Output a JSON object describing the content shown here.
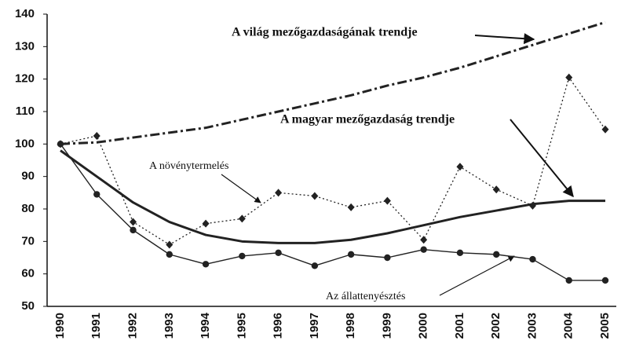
{
  "chart_data": {
    "type": "line",
    "categories": [
      "1990",
      "1991",
      "1992",
      "1993",
      "1994",
      "1995",
      "1996",
      "1997",
      "1998",
      "1999",
      "2000",
      "2001",
      "2002",
      "2003",
      "2004",
      "2005"
    ],
    "ylim": [
      50,
      140
    ],
    "yticks": [
      50,
      60,
      70,
      80,
      90,
      100,
      110,
      120,
      130,
      140
    ],
    "grid": false,
    "series": [
      {
        "name": "A növénytermelés",
        "color": "#222222",
        "dash": "dotted",
        "marker": "diamond",
        "values": [
          100,
          102.5,
          76,
          69,
          75.5,
          77,
          85,
          84,
          80.5,
          82.5,
          70.5,
          93,
          86,
          81,
          120.5,
          104.5
        ]
      },
      {
        "name": "Az állattenyésztés",
        "color": "#222222",
        "dash": "solid",
        "marker": "circle",
        "values": [
          100,
          84.5,
          73.5,
          66,
          63,
          65.5,
          66.5,
          62.5,
          66,
          65,
          67.5,
          66.5,
          66,
          64.5,
          58,
          58
        ]
      },
      {
        "name": "A magyar mezőgazdaság trendje",
        "color": "#222222",
        "dash": "solid",
        "marker": "none",
        "values": [
          98,
          90,
          82,
          76,
          72,
          70,
          69.5,
          69.5,
          70.5,
          72.5,
          75,
          77.5,
          79.5,
          81.5,
          82.5,
          82.5
        ]
      },
      {
        "name": "A világ mezőgazdaságának trendje",
        "color": "#222222",
        "dash": "dashdot",
        "marker": "none",
        "values": [
          100,
          100.5,
          102,
          103.5,
          105,
          107.5,
          110,
          112.5,
          115,
          118,
          120.5,
          123.5,
          127,
          130.5,
          134,
          137.5
        ]
      }
    ]
  }
}
